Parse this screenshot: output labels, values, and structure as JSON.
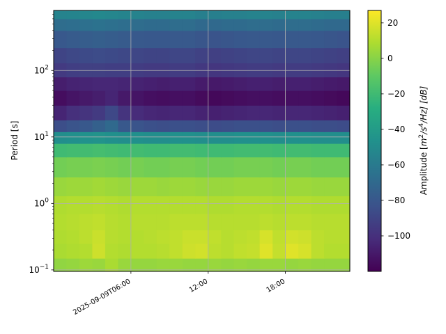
{
  "chart_data": {
    "type": "heatmap",
    "title": "",
    "xlabel": "",
    "ylabel": "Period [s]",
    "y_scale": "log",
    "ylim": [
      0.095,
      800
    ],
    "y_ticks": [
      {
        "value": 0.1,
        "base": "10",
        "exp": "−1"
      },
      {
        "value": 1,
        "base": "10",
        "exp": "0"
      },
      {
        "value": 10,
        "base": "10",
        "exp": "1"
      },
      {
        "value": 100,
        "base": "10",
        "exp": "2"
      }
    ],
    "x_ticks": [
      {
        "hour": 6,
        "label": "2025-09-09T06:00"
      },
      {
        "hour": 12,
        "label": "12:00"
      },
      {
        "hour": 18,
        "label": "18:00"
      }
    ],
    "xlim_hours": [
      0,
      23
    ],
    "grid": true,
    "colormap": "viridis",
    "colorbar": {
      "label_prefix": "Amplitude [",
      "label_unit_m": "m",
      "label_exp_2": "2",
      "label_mid": "/s",
      "label_exp_4": "4",
      "label_end": "/Hz] [dB]",
      "range": [
        -120,
        27
      ],
      "ticks": [
        20,
        0,
        -20,
        -40,
        -60,
        -80,
        -100
      ],
      "tick_labels": [
        "20",
        "0",
        "−20",
        "−40",
        "−60",
        "−80",
        "−100"
      ]
    },
    "time_columns_hours": [
      0,
      1,
      2,
      3,
      4,
      5,
      6,
      7,
      8,
      9,
      10,
      11,
      12,
      13,
      14,
      15,
      16,
      17,
      18,
      19,
      20,
      21,
      22
    ],
    "period_bands": [
      {
        "period_low": 0.095,
        "period_high": 0.15,
        "values": [
          2,
          3,
          5,
          4,
          8,
          4,
          3,
          3,
          4,
          4,
          3,
          3,
          4,
          3,
          4,
          3,
          4,
          4,
          3,
          4,
          3,
          3,
          3
        ]
      },
      {
        "period_low": 0.15,
        "period_high": 0.25,
        "values": [
          8,
          9,
          10,
          16,
          10,
          9,
          10,
          10,
          11,
          13,
          16,
          17,
          12,
          11,
          13,
          14,
          20,
          14,
          20,
          18,
          12,
          10,
          10
        ]
      },
      {
        "period_low": 0.25,
        "period_high": 0.4,
        "values": [
          9,
          10,
          12,
          15,
          11,
          10,
          10,
          11,
          12,
          13,
          15,
          15,
          13,
          11,
          12,
          13,
          18,
          13,
          17,
          16,
          12,
          11,
          11
        ]
      },
      {
        "period_low": 0.4,
        "period_high": 0.7,
        "values": [
          10,
          11,
          12,
          13,
          11,
          10,
          11,
          11,
          11,
          12,
          12,
          12,
          11,
          11,
          11,
          11,
          12,
          11,
          12,
          12,
          11,
          11,
          11
        ]
      },
      {
        "period_low": 0.7,
        "period_high": 1.3,
        "values": [
          9,
          10,
          10,
          11,
          10,
          9,
          10,
          10,
          10,
          10,
          10,
          10,
          9,
          9,
          10,
          10,
          10,
          9,
          10,
          10,
          9,
          9,
          9
        ]
      },
      {
        "period_low": 1.3,
        "period_high": 2.5,
        "values": [
          4,
          5,
          5,
          6,
          5,
          4,
          5,
          5,
          4,
          5,
          5,
          4,
          4,
          4,
          5,
          5,
          5,
          4,
          5,
          5,
          4,
          4,
          4
        ]
      },
      {
        "period_low": 2.5,
        "period_high": 5,
        "values": [
          -5,
          -4,
          -4,
          -3,
          -4,
          -5,
          -4,
          -5,
          -5,
          -4,
          -4,
          -5,
          -5,
          -5,
          -4,
          -4,
          -4,
          -5,
          -4,
          -4,
          -5,
          -5,
          -5
        ]
      },
      {
        "period_low": 5,
        "period_high": 8,
        "values": [
          -20,
          -19,
          -19,
          -18,
          -19,
          -20,
          -19,
          -20,
          -20,
          -19,
          -19,
          -20,
          -20,
          -20,
          -19,
          -19,
          -19,
          -20,
          -19,
          -19,
          -20,
          -20,
          -20
        ]
      },
      {
        "period_low": 8,
        "period_high": 12,
        "values": [
          -48,
          -47,
          -46,
          -45,
          -47,
          -48,
          -47,
          -48,
          -48,
          -47,
          -47,
          -48,
          -48,
          -48,
          -47,
          -47,
          -47,
          -48,
          -47,
          -47,
          -48,
          -48,
          -48
        ]
      },
      {
        "period_low": 12,
        "period_high": 18,
        "values": [
          -85,
          -82,
          -80,
          -75,
          -70,
          -80,
          -82,
          -84,
          -85,
          -84,
          -84,
          -85,
          -86,
          -85,
          -84,
          -84,
          -84,
          -85,
          -84,
          -84,
          -85,
          -85,
          -86
        ]
      },
      {
        "period_low": 18,
        "period_high": 30,
        "values": [
          -105,
          -100,
          -98,
          -95,
          -88,
          -98,
          -102,
          -104,
          -105,
          -104,
          -104,
          -106,
          -107,
          -106,
          -105,
          -104,
          -104,
          -105,
          -104,
          -104,
          -105,
          -106,
          -107
        ]
      },
      {
        "period_low": 30,
        "period_high": 50,
        "values": [
          -115,
          -112,
          -110,
          -108,
          -105,
          -110,
          -112,
          -114,
          -115,
          -114,
          -114,
          -116,
          -117,
          -116,
          -115,
          -114,
          -114,
          -115,
          -114,
          -114,
          -115,
          -116,
          -117
        ]
      },
      {
        "period_low": 50,
        "period_high": 80,
        "values": [
          -108,
          -106,
          -105,
          -104,
          -104,
          -105,
          -106,
          -107,
          -108,
          -107,
          -107,
          -109,
          -110,
          -109,
          -108,
          -107,
          -107,
          -108,
          -107,
          -107,
          -108,
          -109,
          -110
        ]
      },
      {
        "period_low": 80,
        "period_high": 130,
        "values": [
          -95,
          -93,
          -92,
          -92,
          -93,
          -93,
          -94,
          -95,
          -95,
          -94,
          -94,
          -96,
          -97,
          -96,
          -95,
          -94,
          -94,
          -95,
          -94,
          -94,
          -95,
          -96,
          -97
        ]
      },
      {
        "period_low": 130,
        "period_high": 220,
        "values": [
          -90,
          -88,
          -87,
          -86,
          -87,
          -88,
          -89,
          -90,
          -90,
          -89,
          -89,
          -91,
          -92,
          -91,
          -90,
          -89,
          -89,
          -90,
          -89,
          -89,
          -90,
          -91,
          -92
        ]
      },
      {
        "period_low": 220,
        "period_high": 400,
        "values": [
          -80,
          -78,
          -77,
          -76,
          -77,
          -78,
          -79,
          -80,
          -80,
          -79,
          -79,
          -81,
          -82,
          -81,
          -80,
          -79,
          -79,
          -80,
          -79,
          -79,
          -80,
          -81,
          -82
        ]
      },
      {
        "period_low": 400,
        "period_high": 600,
        "values": [
          -68,
          -67,
          -66,
          -65,
          -66,
          -67,
          -68,
          -69,
          -69,
          -68,
          -68,
          -70,
          -70,
          -69,
          -69,
          -68,
          -68,
          -69,
          -68,
          -68,
          -69,
          -70,
          -70
        ]
      },
      {
        "period_low": 600,
        "period_high": 800,
        "values": [
          -55,
          -54,
          -53,
          -52,
          -53,
          -54,
          -55,
          -56,
          -56,
          -55,
          -55,
          -57,
          -57,
          -56,
          -56,
          -55,
          -55,
          -56,
          -55,
          -55,
          -56,
          -57,
          -57
        ]
      }
    ]
  }
}
